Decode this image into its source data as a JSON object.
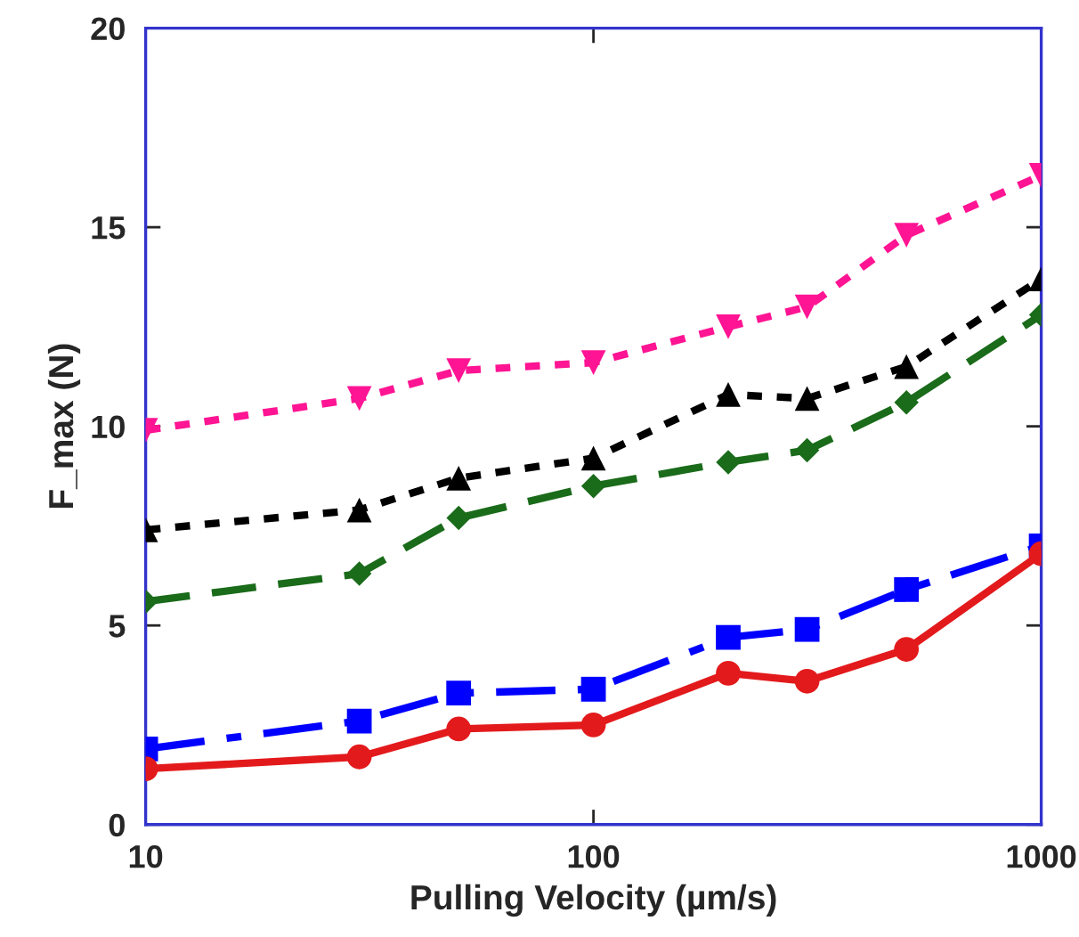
{
  "chart_data": {
    "type": "line",
    "xlabel": "Pulling Velocity (µm/s)",
    "ylabel": "F_max (N)",
    "x": [
      10,
      30,
      50,
      100,
      200,
      300,
      500,
      1000
    ],
    "log": "x",
    "xlim": [
      10,
      1000
    ],
    "xticks": [
      10,
      100,
      1000
    ],
    "ylim": [
      0,
      20
    ],
    "yticks": [
      0,
      5,
      10,
      15,
      20
    ],
    "grid": false,
    "legend": false,
    "series": [
      {
        "color": "#ff1493",
        "marker": "triangle_down",
        "line_style": "dotted",
        "values": [
          9.9,
          10.7,
          11.4,
          11.6,
          12.5,
          13.0,
          14.8,
          16.3
        ]
      },
      {
        "color": "#000000",
        "marker": "triangle",
        "line_style": "dotted",
        "values": [
          7.4,
          7.9,
          8.7,
          9.2,
          10.8,
          10.7,
          11.5,
          13.7
        ]
      },
      {
        "color": "#1a6b1a",
        "marker": "diamond",
        "line_style": "dashed",
        "values": [
          5.6,
          6.3,
          7.7,
          8.5,
          9.1,
          9.4,
          10.6,
          12.8
        ]
      },
      {
        "color": "#0000ff",
        "marker": "square",
        "line_style": "dashdot",
        "values": [
          1.9,
          2.6,
          3.3,
          3.4,
          4.7,
          4.9,
          5.9,
          7.0
        ]
      },
      {
        "color": "#e31a1c",
        "marker": "circle",
        "line_style": "solid",
        "values": [
          1.4,
          1.7,
          2.4,
          2.5,
          3.8,
          3.6,
          4.4,
          6.8
        ]
      }
    ]
  }
}
